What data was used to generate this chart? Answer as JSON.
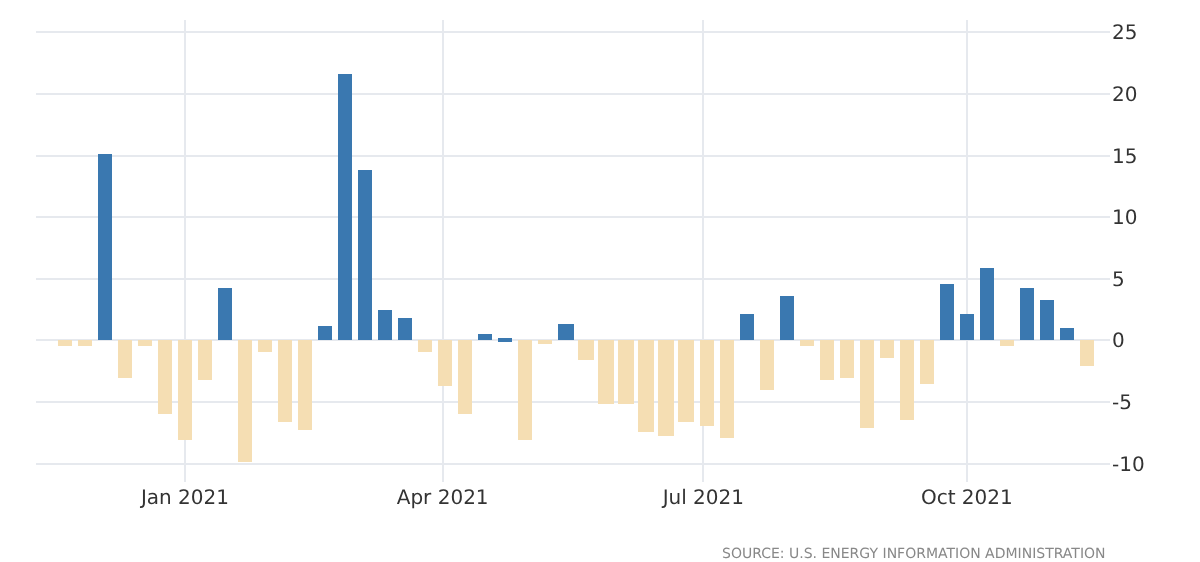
{
  "chart_data": {
    "type": "bar",
    "x": [
      "2020-11-20",
      "2020-11-27",
      "2020-12-04",
      "2020-12-11",
      "2020-12-18",
      "2020-12-25",
      "2021-01-01",
      "2021-01-08",
      "2021-01-15",
      "2021-01-22",
      "2021-01-29",
      "2021-02-05",
      "2021-02-12",
      "2021-02-19",
      "2021-02-26",
      "2021-03-05",
      "2021-03-12",
      "2021-03-19",
      "2021-03-26",
      "2021-04-02",
      "2021-04-09",
      "2021-04-16",
      "2021-04-23",
      "2021-04-30",
      "2021-05-07",
      "2021-05-14",
      "2021-05-21",
      "2021-05-28",
      "2021-06-04",
      "2021-06-11",
      "2021-06-18",
      "2021-06-25",
      "2021-07-02",
      "2021-07-09",
      "2021-07-16",
      "2021-07-23",
      "2021-07-30",
      "2021-08-06",
      "2021-08-13",
      "2021-08-20",
      "2021-08-27",
      "2021-09-03",
      "2021-09-10",
      "2021-09-17",
      "2021-09-24",
      "2021-10-01",
      "2021-10-08",
      "2021-10-15",
      "2021-10-22",
      "2021-10-29",
      "2021-11-05",
      "2021-11-12"
    ],
    "values": [
      -0.5,
      -0.4,
      15.2,
      -3.1,
      -0.4,
      -6.0,
      -8.1,
      -3.3,
      4.3,
      -9.9,
      -1.0,
      -6.6,
      -7.3,
      1.2,
      21.6,
      13.8,
      2.4,
      1.8,
      -0.9,
      -3.7,
      -5.9,
      0.5,
      0.1,
      -8.1,
      -0.3,
      1.3,
      -1.6,
      -5.1,
      -5.2,
      -7.4,
      -7.7,
      -6.7,
      -6.9,
      -8.0,
      2.1,
      -4.0,
      3.6,
      -0.4,
      -3.3,
      -3.0,
      -7.1,
      -1.5,
      -6.4,
      -3.6,
      4.5,
      2.2,
      5.9,
      -0.4,
      4.2,
      3.2,
      1.0,
      -2.1
    ],
    "colors": [
      "#f5deb3",
      "#f5deb3",
      "#3a78b0",
      "#f5deb3",
      "#f5deb3",
      "#f5deb3",
      "#f5deb3",
      "#f5deb3",
      "#3a78b0",
      "#f5deb3",
      "#f5deb3",
      "#f5deb3",
      "#f5deb3",
      "#3a78b0",
      "#3a78b0",
      "#3a78b0",
      "#3a78b0",
      "#3a78b0",
      "#f5deb3",
      "#f5deb3",
      "#f5deb3",
      "#3a78b0",
      "#3a78b0",
      "#f5deb3",
      "#f5deb3",
      "#3a78b0",
      "#f5deb3",
      "#f5deb3",
      "#f5deb3",
      "#f5deb3",
      "#f5deb3",
      "#f5deb3",
      "#f5deb3",
      "#f5deb3",
      "#3a78b0",
      "#f5deb3",
      "#3a78b0",
      "#f5deb3",
      "#f5deb3",
      "#f5deb3",
      "#f5deb3",
      "#f5deb3",
      "#f5deb3",
      "#f5deb3",
      "#3a78b0",
      "#3a78b0",
      "#3a78b0",
      "#f5deb3",
      "#3a78b0",
      "#3a78b0",
      "#3a78b0",
      "#f5deb3"
    ],
    "xlim": [
      "2020-11-10",
      "2021-11-20"
    ],
    "xticks": [
      {
        "value": "2021-01-01",
        "label": "Jan 2021"
      },
      {
        "value": "2021-04-01",
        "label": "Apr 2021"
      },
      {
        "value": "2021-07-01",
        "label": "Jul 2021"
      },
      {
        "value": "2021-10-01",
        "label": "Oct 2021"
      }
    ],
    "ylim": [
      -11.5,
      26
    ],
    "yticks": [
      -10,
      -5,
      0,
      5,
      10,
      15,
      20,
      25
    ],
    "grid": true,
    "legend": false,
    "annotations": [
      "SOURCE: U.S. ENERGY INFORMATION ADMINISTRATION"
    ]
  }
}
